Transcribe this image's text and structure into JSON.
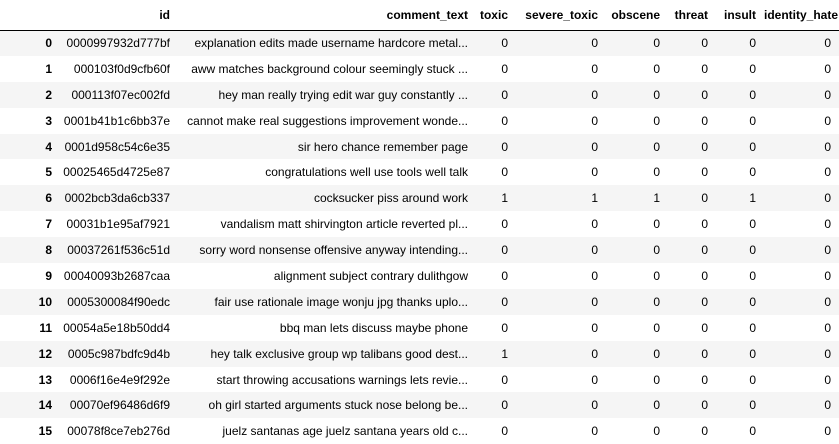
{
  "table": {
    "columns": {
      "index": "",
      "id": "id",
      "comment_text": "comment_text",
      "toxic": "toxic",
      "severe_toxic": "severe_toxic",
      "obscene": "obscene",
      "threat": "threat",
      "insult": "insult",
      "identity_hate": "identity_hate"
    },
    "rows": [
      {
        "index": "0",
        "id": "0000997932d777bf",
        "comment_text": "explanation edits made username hardcore metal...",
        "toxic": "0",
        "severe_toxic": "0",
        "obscene": "0",
        "threat": "0",
        "insult": "0",
        "identity_hate": "0"
      },
      {
        "index": "1",
        "id": "000103f0d9cfb60f",
        "comment_text": "aww matches background colour seemingly stuck ...",
        "toxic": "0",
        "severe_toxic": "0",
        "obscene": "0",
        "threat": "0",
        "insult": "0",
        "identity_hate": "0"
      },
      {
        "index": "2",
        "id": "000113f07ec002fd",
        "comment_text": "hey man really trying edit war guy constantly ...",
        "toxic": "0",
        "severe_toxic": "0",
        "obscene": "0",
        "threat": "0",
        "insult": "0",
        "identity_hate": "0"
      },
      {
        "index": "3",
        "id": "0001b41b1c6bb37e",
        "comment_text": "cannot make real suggestions improvement wonde...",
        "toxic": "0",
        "severe_toxic": "0",
        "obscene": "0",
        "threat": "0",
        "insult": "0",
        "identity_hate": "0"
      },
      {
        "index": "4",
        "id": "0001d958c54c6e35",
        "comment_text": "sir hero chance remember page",
        "toxic": "0",
        "severe_toxic": "0",
        "obscene": "0",
        "threat": "0",
        "insult": "0",
        "identity_hate": "0"
      },
      {
        "index": "5",
        "id": "00025465d4725e87",
        "comment_text": "congratulations well use tools well talk",
        "toxic": "0",
        "severe_toxic": "0",
        "obscene": "0",
        "threat": "0",
        "insult": "0",
        "identity_hate": "0"
      },
      {
        "index": "6",
        "id": "0002bcb3da6cb337",
        "comment_text": "cocksucker piss around work",
        "toxic": "1",
        "severe_toxic": "1",
        "obscene": "1",
        "threat": "0",
        "insult": "1",
        "identity_hate": "0"
      },
      {
        "index": "7",
        "id": "00031b1e95af7921",
        "comment_text": "vandalism matt shirvington article reverted pl...",
        "toxic": "0",
        "severe_toxic": "0",
        "obscene": "0",
        "threat": "0",
        "insult": "0",
        "identity_hate": "0"
      },
      {
        "index": "8",
        "id": "00037261f536c51d",
        "comment_text": "sorry word nonsense offensive anyway intending...",
        "toxic": "0",
        "severe_toxic": "0",
        "obscene": "0",
        "threat": "0",
        "insult": "0",
        "identity_hate": "0"
      },
      {
        "index": "9",
        "id": "00040093b2687caa",
        "comment_text": "alignment subject contrary dulithgow",
        "toxic": "0",
        "severe_toxic": "0",
        "obscene": "0",
        "threat": "0",
        "insult": "0",
        "identity_hate": "0"
      },
      {
        "index": "10",
        "id": "0005300084f90edc",
        "comment_text": "fair use rationale image wonju jpg thanks uplo...",
        "toxic": "0",
        "severe_toxic": "0",
        "obscene": "0",
        "threat": "0",
        "insult": "0",
        "identity_hate": "0"
      },
      {
        "index": "11",
        "id": "00054a5e18b50dd4",
        "comment_text": "bbq man lets discuss maybe phone",
        "toxic": "0",
        "severe_toxic": "0",
        "obscene": "0",
        "threat": "0",
        "insult": "0",
        "identity_hate": "0"
      },
      {
        "index": "12",
        "id": "0005c987bdfc9d4b",
        "comment_text": "hey talk exclusive group wp talibans good dest...",
        "toxic": "1",
        "severe_toxic": "0",
        "obscene": "0",
        "threat": "0",
        "insult": "0",
        "identity_hate": "0"
      },
      {
        "index": "13",
        "id": "0006f16e4e9f292e",
        "comment_text": "start throwing accusations warnings lets revie...",
        "toxic": "0",
        "severe_toxic": "0",
        "obscene": "0",
        "threat": "0",
        "insult": "0",
        "identity_hate": "0"
      },
      {
        "index": "14",
        "id": "00070ef96486d6f9",
        "comment_text": "oh girl started arguments stuck nose belong be...",
        "toxic": "0",
        "severe_toxic": "0",
        "obscene": "0",
        "threat": "0",
        "insult": "0",
        "identity_hate": "0"
      },
      {
        "index": "15",
        "id": "00078f8ce7eb276d",
        "comment_text": "juelz santanas age juelz santana years old c...",
        "toxic": "0",
        "severe_toxic": "0",
        "obscene": "0",
        "threat": "0",
        "insult": "0",
        "identity_hate": "0"
      }
    ]
  }
}
